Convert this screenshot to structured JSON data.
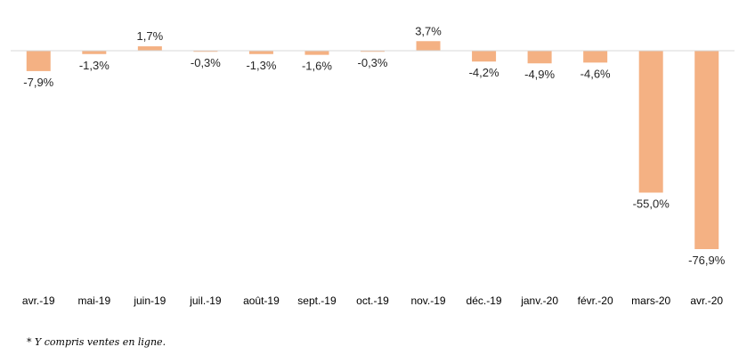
{
  "chart_data": {
    "type": "bar",
    "title": "",
    "xlabel": "",
    "ylabel": "",
    "categories": [
      "avr.-19",
      "mai-19",
      "juin-19",
      "juil.-19",
      "août-19",
      "sept.-19",
      "oct.-19",
      "nov.-19",
      "déc.-19",
      "janv.-20",
      "févr.-20",
      "mars-20",
      "avr.-20"
    ],
    "values": [
      -7.9,
      -1.3,
      1.7,
      -0.3,
      -1.3,
      -1.6,
      -0.3,
      3.7,
      -4.2,
      -4.9,
      -4.6,
      -55.0,
      -76.9
    ],
    "data_labels": [
      "-7,9%",
      "-1,3%",
      "1,7%",
      "-0,3%",
      "-1,3%",
      "-1,6%",
      "-0,3%",
      "3,7%",
      "-4,2%",
      "-4,9%",
      "-4,6%",
      "-55,0%",
      "-76,9%"
    ],
    "ylim": [
      -80,
      5
    ],
    "grid": false,
    "legend": "none",
    "bar_color": "#F4B183",
    "axis_color": "#D9D9D9"
  },
  "footnote": "* Y compris ventes en ligne."
}
